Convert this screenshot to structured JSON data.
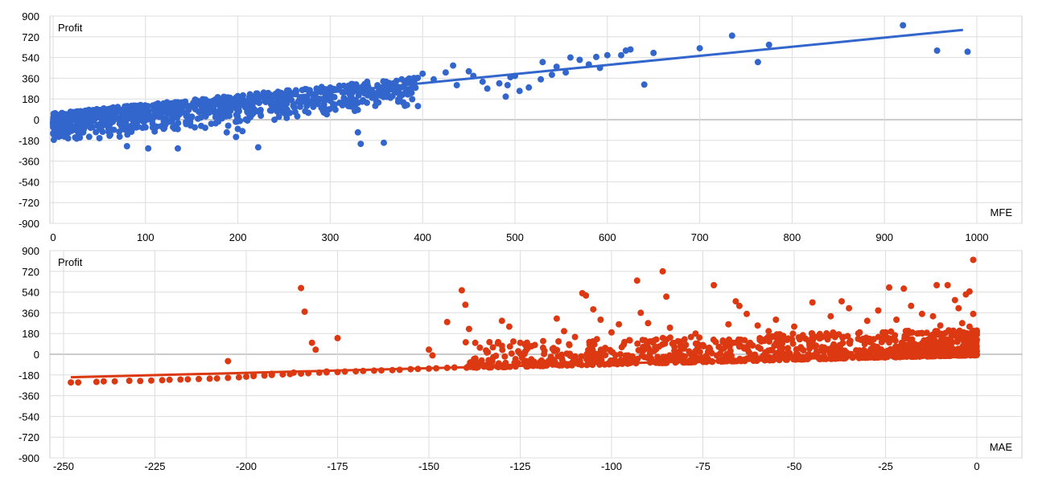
{
  "charts": [
    {
      "id": "mfe",
      "type": "scatter",
      "x_axis_title": "MFE",
      "y_axis_title": "Profit",
      "xlim": [
        0,
        1000
      ],
      "ylim": [
        -900,
        900
      ],
      "x_ticks": [
        "0",
        "100",
        "200",
        "300",
        "400",
        "500",
        "600",
        "700",
        "800",
        "900",
        "1000"
      ],
      "y_ticks": [
        "900",
        "720",
        "540",
        "360",
        "180",
        "0",
        "-180",
        "-360",
        "-540",
        "-720",
        "-900"
      ],
      "grid": true,
      "color": "#3366cc",
      "trendline": {
        "x": [
          0,
          985
        ],
        "y": [
          0,
          780
        ]
      },
      "generated_bulk": {
        "count": 950,
        "x_range": [
          0,
          395
        ],
        "slope": 0.79,
        "spread_low": 210,
        "spread_high": 55
      },
      "points": [
        [
          920,
          820
        ],
        [
          957,
          600
        ],
        [
          990,
          590
        ],
        [
          735,
          730
        ],
        [
          763,
          500
        ],
        [
          775,
          650
        ],
        [
          640,
          305
        ],
        [
          650,
          580
        ],
        [
          620,
          600
        ],
        [
          600,
          560
        ],
        [
          588,
          545
        ],
        [
          570,
          520
        ],
        [
          560,
          540
        ],
        [
          545,
          460
        ],
        [
          530,
          500
        ],
        [
          500,
          380
        ],
        [
          495,
          370
        ],
        [
          492,
          300
        ],
        [
          490,
          200
        ],
        [
          483,
          315
        ],
        [
          470,
          270
        ],
        [
          437,
          300
        ],
        [
          433,
          470
        ],
        [
          425,
          410
        ],
        [
          412,
          350
        ],
        [
          400,
          400
        ],
        [
          380,
          280
        ],
        [
          370,
          240
        ],
        [
          340,
          330
        ],
        [
          330,
          -110
        ],
        [
          333,
          -210
        ],
        [
          358,
          -200
        ],
        [
          323,
          310
        ],
        [
          300,
          250
        ],
        [
          290,
          240
        ],
        [
          275,
          200
        ],
        [
          260,
          120
        ],
        [
          253,
          140
        ],
        [
          248,
          130
        ],
        [
          240,
          120
        ],
        [
          235,
          80
        ],
        [
          222,
          -240
        ],
        [
          216,
          50
        ],
        [
          205,
          -100
        ],
        [
          200,
          -80
        ],
        [
          198,
          -150
        ],
        [
          188,
          -110
        ],
        [
          135,
          -250
        ],
        [
          103,
          -250
        ],
        [
          80,
          -230
        ],
        [
          450,
          420
        ],
        [
          455,
          380
        ],
        [
          465,
          330
        ],
        [
          505,
          250
        ],
        [
          515,
          280
        ],
        [
          528,
          350
        ],
        [
          540,
          390
        ],
        [
          555,
          410
        ],
        [
          580,
          480
        ],
        [
          592,
          450
        ],
        [
          615,
          560
        ],
        [
          625,
          610
        ],
        [
          700,
          620
        ]
      ]
    },
    {
      "id": "mae",
      "type": "scatter",
      "x_axis_title": "MAE",
      "y_axis_title": "Profit",
      "xlim": [
        -250,
        0
      ],
      "ylim": [
        -900,
        900
      ],
      "x_ticks": [
        "-250",
        "-225",
        "-200",
        "-175",
        "-150",
        "-125",
        "-100",
        "-75",
        "-50",
        "-25",
        "0"
      ],
      "y_ticks": [
        "900",
        "720",
        "540",
        "360",
        "180",
        "0",
        "-180",
        "-360",
        "-540",
        "-720",
        "-900"
      ],
      "grid": true,
      "color": "#dc3912",
      "trendline": {
        "x": [
          -248,
          0
        ],
        "y": [
          -200,
          0
        ]
      },
      "generated_bulk": {
        "count": 1100,
        "x_range": [
          -140,
          0
        ],
        "slope": 0.8,
        "spread_low": 8,
        "spread_high": 220
      },
      "points": [
        [
          -248,
          -245
        ],
        [
          -246,
          -245
        ],
        [
          -241,
          -240
        ],
        [
          -239,
          -235
        ],
        [
          -236,
          -235
        ],
        [
          -232,
          -230
        ],
        [
          -229,
          -232
        ],
        [
          -226,
          -228
        ],
        [
          -223,
          -225
        ],
        [
          -221,
          -222
        ],
        [
          -218,
          -220
        ],
        [
          -216,
          -218
        ],
        [
          -213,
          -215
        ],
        [
          -210,
          -212
        ],
        [
          -208,
          -210
        ],
        [
          -205,
          -205
        ],
        [
          -202,
          -200
        ],
        [
          -200,
          -195
        ],
        [
          -198,
          -190
        ],
        [
          -195,
          -185
        ],
        [
          -193,
          -180
        ],
        [
          -190,
          -175
        ],
        [
          -188,
          -172
        ],
        [
          -185,
          -168
        ],
        [
          -183,
          -165
        ],
        [
          -180,
          -160
        ],
        [
          -178,
          -158
        ],
        [
          -175,
          -155
        ],
        [
          -173,
          -150
        ],
        [
          -170,
          -148
        ],
        [
          -168,
          -145
        ],
        [
          -165,
          -142
        ],
        [
          -163,
          -140
        ],
        [
          -160,
          -138
        ],
        [
          -158,
          -135
        ],
        [
          -155,
          -130
        ],
        [
          -153,
          -128
        ],
        [
          -150,
          -125
        ],
        [
          -148,
          -122
        ],
        [
          -145,
          -118
        ],
        [
          -143,
          -115
        ],
        [
          -185,
          575
        ],
        [
          -184,
          370
        ],
        [
          -182,
          100
        ],
        [
          -181,
          40
        ],
        [
          -175,
          140
        ],
        [
          -205,
          -60
        ],
        [
          -198,
          -180
        ],
        [
          -193,
          -170
        ],
        [
          -187,
          -160
        ],
        [
          -178,
          -150
        ],
        [
          -150,
          40
        ],
        [
          -149,
          -10
        ],
        [
          -145,
          280
        ],
        [
          -141,
          555
        ],
        [
          -140,
          430
        ],
        [
          -139,
          220
        ],
        [
          -130,
          290
        ],
        [
          -128,
          240
        ],
        [
          -125,
          100
        ],
        [
          -123,
          50
        ],
        [
          -121,
          80
        ],
        [
          -115,
          310
        ],
        [
          -113,
          200
        ],
        [
          -110,
          150
        ],
        [
          -108,
          530
        ],
        [
          -107,
          510
        ],
        [
          -105,
          390
        ],
        [
          -103,
          300
        ],
        [
          -100,
          190
        ],
        [
          -98,
          260
        ],
        [
          -95,
          120
        ],
        [
          -93,
          640
        ],
        [
          -92,
          360
        ],
        [
          -90,
          270
        ],
        [
          -86,
          720
        ],
        [
          -85,
          500
        ],
        [
          -84,
          230
        ],
        [
          -80,
          130
        ],
        [
          -77,
          180
        ],
        [
          -72,
          600
        ],
        [
          -68,
          260
        ],
        [
          -66,
          460
        ],
        [
          -65,
          420
        ],
        [
          -63,
          350
        ],
        [
          -60,
          250
        ],
        [
          -57,
          200
        ],
        [
          -55,
          300
        ],
        [
          -53,
          160
        ],
        [
          -50,
          240
        ],
        [
          -45,
          450
        ],
        [
          -40,
          330
        ],
        [
          -37,
          460
        ],
        [
          -35,
          400
        ],
        [
          -30,
          290
        ],
        [
          -27,
          380
        ],
        [
          -24,
          580
        ],
        [
          -22,
          300
        ],
        [
          -20,
          570
        ],
        [
          -18,
          420
        ],
        [
          -15,
          350
        ],
        [
          -12,
          330
        ],
        [
          -11,
          600
        ],
        [
          -8,
          600
        ],
        [
          -6,
          470
        ],
        [
          -4,
          270
        ],
        [
          -3,
          520
        ],
        [
          -2,
          545
        ],
        [
          -1,
          350
        ],
        [
          -1,
          820
        ],
        [
          -2,
          240
        ],
        [
          -5,
          400
        ],
        [
          -10,
          250
        ]
      ]
    }
  ]
}
